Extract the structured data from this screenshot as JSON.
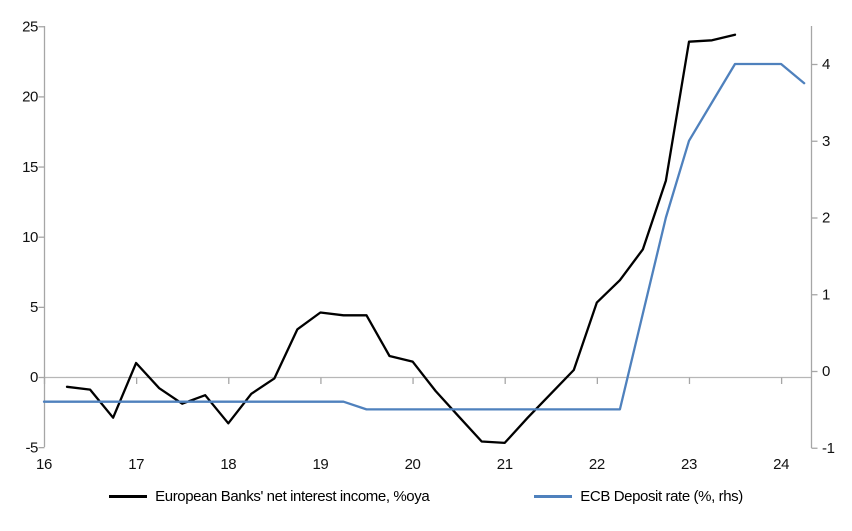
{
  "chart_data": {
    "type": "line",
    "title": "",
    "legend_position": "bottom",
    "grid": "zero-line-only",
    "x_axis": {
      "ticks": [
        16,
        17,
        18,
        19,
        20,
        21,
        22,
        23,
        24
      ],
      "min": 16,
      "max": 24.33
    },
    "left_axis": {
      "ticks": [
        25,
        20,
        15,
        10,
        5,
        0,
        -5
      ],
      "min": -5,
      "max": 25
    },
    "right_axis": {
      "ticks": [
        4,
        3,
        2,
        1,
        0,
        -1
      ],
      "min": -1.07,
      "max": 4.47
    },
    "colors": {
      "axis": "#a6a6a6",
      "zero_gridline": "#b7b7b7"
    },
    "series": [
      {
        "id": "nii",
        "name": "European Banks' net interest income, %oya",
        "axis": "left",
        "color": "#000000",
        "x": [
          16.25,
          16.5,
          16.75,
          17.0,
          17.25,
          17.5,
          17.75,
          18.0,
          18.25,
          18.5,
          18.75,
          19.0,
          19.25,
          19.5,
          19.75,
          20.0,
          20.25,
          20.5,
          20.75,
          21.0,
          21.25,
          21.5,
          21.75,
          22.0,
          22.25,
          22.5,
          22.75,
          23.0,
          23.25,
          23.5
        ],
        "values": [
          -0.7,
          -0.9,
          -2.9,
          1.0,
          -0.8,
          -1.9,
          -1.3,
          -3.3,
          -1.2,
          -0.1,
          3.4,
          4.6,
          4.4,
          4.4,
          1.5,
          1.1,
          -1.0,
          -2.8,
          -4.6,
          -4.7,
          -2.9,
          -1.2,
          0.5,
          5.3,
          6.9,
          9.1,
          14.0,
          23.9,
          24.0,
          24.4
        ]
      },
      {
        "id": "ecb-deposit-rate",
        "name": "ECB Deposit rate (%, rhs)",
        "axis": "right",
        "color": "#4f81bd",
        "x": [
          16.0,
          16.25,
          16.5,
          16.75,
          17.0,
          17.25,
          17.5,
          17.75,
          18.0,
          18.25,
          18.5,
          18.75,
          19.0,
          19.25,
          19.5,
          19.75,
          20.0,
          20.25,
          20.5,
          20.75,
          21.0,
          21.25,
          21.5,
          21.75,
          22.0,
          22.25,
          22.5,
          22.75,
          23.0,
          23.25,
          23.5,
          23.75,
          24.0,
          24.25
        ],
        "values": [
          -0.4,
          -0.4,
          -0.4,
          -0.4,
          -0.4,
          -0.4,
          -0.4,
          -0.4,
          -0.4,
          -0.4,
          -0.4,
          -0.4,
          -0.4,
          -0.4,
          -0.5,
          -0.5,
          -0.5,
          -0.5,
          -0.5,
          -0.5,
          -0.5,
          -0.5,
          -0.5,
          -0.5,
          -0.5,
          -0.5,
          0.75,
          2.0,
          3.0,
          3.5,
          4.0,
          4.0,
          4.0,
          3.75
        ]
      }
    ]
  }
}
